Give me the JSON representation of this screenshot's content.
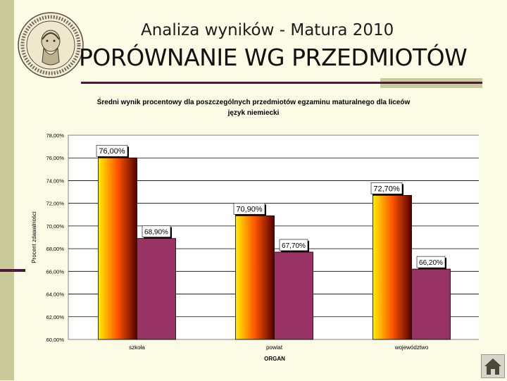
{
  "slide": {
    "title": "Analiza wyników  - Matura 2010",
    "heading": "PORÓWNANIE WG PRZEDMIOTÓW",
    "logo_text": "V LICEUM OGÓLNOKSZTAŁCĄCE IM. HENRYKA SIENKIEWICZA",
    "logo_bottom": "NOWA  HUTA"
  },
  "colors": {
    "bar_gradient_top": "#ffee00",
    "bar_gradient_mid": "#ff5500",
    "bar_gradient_bottom": "#550000",
    "bar_purple": "#993366",
    "accent": "#4b1a3a"
  },
  "chart_data": {
    "type": "bar",
    "title": "Średni wynik procentowy dla poszczególnych przedmiotów egzaminu maturalnego dla liceów",
    "subtitle": "język niemiecki",
    "xlabel": "ORGAN",
    "ylabel": "Procent zdawalności",
    "ylim": [
      60,
      78
    ],
    "yticks": [
      "60,00%",
      "62,00%",
      "64,00%",
      "66,00%",
      "68,00%",
      "70,00%",
      "72,00%",
      "74,00%",
      "76,00%",
      "78,00%"
    ],
    "categories": [
      "szkoła",
      "powiat",
      "województwo"
    ],
    "series": [
      {
        "values": [
          76.0,
          70.9,
          72.7
        ],
        "labels": [
          "76,00%",
          "70,90%",
          "72,70%"
        ]
      },
      {
        "values": [
          68.9,
          67.7,
          66.2
        ],
        "labels": [
          "68,90%",
          "67,70%",
          "66,20%"
        ]
      }
    ]
  }
}
